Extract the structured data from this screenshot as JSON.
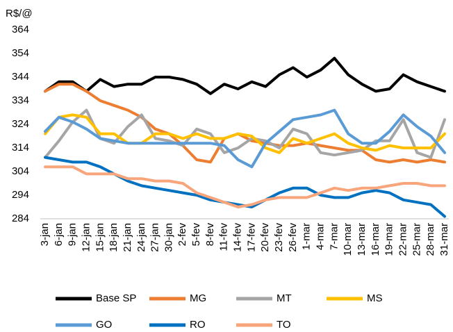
{
  "chart_data": {
    "type": "line",
    "y_label": "R$/@",
    "categories": [
      "3-jan",
      "6-jan",
      "9-jan",
      "12-jan",
      "15-jan",
      "18-jan",
      "21-jan",
      "24-jan",
      "27-jan",
      "30-jan",
      "2-fev",
      "5-fev",
      "8-fev",
      "11-fev",
      "14-fev",
      "17-fev",
      "20-fev",
      "23-fev",
      "26-fev",
      "1-mar",
      "4-mar",
      "7-mar",
      "10-mar",
      "13-mar",
      "16-mar",
      "19-mar",
      "22-mar",
      "25-mar",
      "28-mar",
      "31-mar"
    ],
    "series": [
      {
        "name": "Base SP",
        "color": "#000000",
        "values": [
          338,
          342,
          342,
          338,
          343,
          340,
          341,
          341,
          344,
          344,
          343,
          341,
          337,
          341,
          339,
          342,
          340,
          345,
          348,
          344,
          347,
          352,
          345,
          341,
          338,
          339,
          345,
          342,
          340,
          338
        ]
      },
      {
        "name": "MG",
        "color": "#ed7d31",
        "values": [
          338,
          341,
          341,
          338,
          334,
          332,
          330,
          327,
          322,
          320,
          315,
          309,
          308,
          318,
          320,
          317,
          316,
          315,
          315,
          316,
          315,
          314,
          313,
          313,
          309,
          308,
          309,
          308,
          309,
          308
        ]
      },
      {
        "name": "MT",
        "color": "#a5a5a5",
        "values": [
          310,
          317,
          325,
          330,
          318,
          316,
          323,
          328,
          318,
          317,
          315,
          322,
          320,
          312,
          314,
          318,
          317,
          314,
          322,
          320,
          312,
          311,
          312,
          313,
          317,
          317,
          326,
          312,
          310,
          326
        ]
      },
      {
        "name": "MS",
        "color": "#ffc000",
        "values": [
          320,
          327,
          328,
          327,
          320,
          320,
          316,
          316,
          320,
          320,
          318,
          320,
          318,
          318,
          320,
          319,
          314,
          312,
          318,
          316,
          318,
          320,
          316,
          314,
          313,
          315,
          314,
          314,
          314,
          320
        ]
      },
      {
        "name": "GO",
        "color": "#5b9bd5",
        "values": [
          321,
          327,
          325,
          322,
          318,
          317,
          316,
          316,
          316,
          316,
          316,
          316,
          316,
          315,
          309,
          306,
          316,
          321,
          326,
          327,
          328,
          330,
          320,
          316,
          316,
          321,
          328,
          323,
          319,
          312
        ]
      },
      {
        "name": "RO",
        "color": "#0070c0",
        "values": [
          310,
          309,
          308,
          308,
          306,
          303,
          300,
          298,
          297,
          296,
          295,
          294,
          292,
          291,
          290,
          289,
          292,
          295,
          297,
          297,
          294,
          293,
          293,
          295,
          296,
          295,
          292,
          291,
          290,
          285
        ]
      },
      {
        "name": "TO",
        "color": "#f8a57c",
        "values": [
          306,
          306,
          306,
          303,
          303,
          303,
          301,
          301,
          300,
          300,
          299,
          295,
          293,
          291,
          289,
          290,
          292,
          293,
          293,
          293,
          295,
          297,
          296,
          297,
          297,
          298,
          299,
          299,
          298,
          298
        ]
      }
    ],
    "ylim": [
      284,
      364
    ],
    "yticks": [
      284,
      294,
      304,
      314,
      324,
      334,
      344,
      354,
      364
    ],
    "grid": false
  }
}
